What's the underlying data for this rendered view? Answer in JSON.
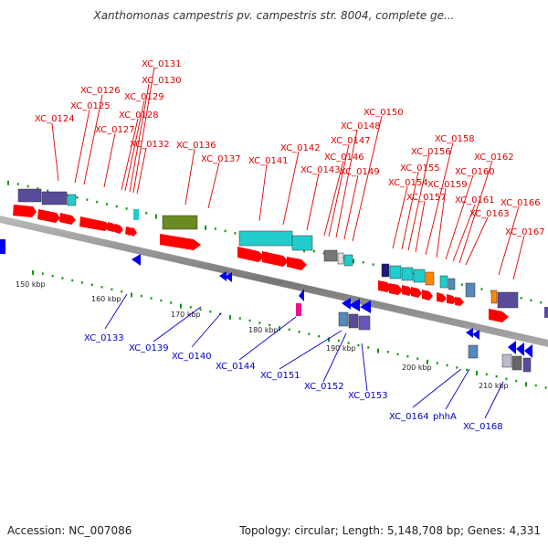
{
  "title": "Xanthomonas campestris pv. campestris str. 8004, complete ge...",
  "footer": {
    "accession": "Accession: NC_007086",
    "summary": "Topology: circular; Length: 5,148,708 bp; Genes: 4,331"
  },
  "axis": {
    "tick_labels": [
      "150 kbp",
      "160 kbp",
      "170 kbp",
      "180 kbp",
      "190 kbp",
      "200 kbp",
      "210 kbp"
    ]
  },
  "genes_forward": [
    "XC_0124",
    "XC_0125",
    "XC_0126",
    "XC_0127",
    "XC_0128",
    "XC_0129",
    "XC_0130",
    "XC_0131",
    "XC_0132",
    "XC_0136",
    "XC_0137",
    "XC_0141",
    "XC_0142",
    "XC_0143",
    "XC_0146",
    "XC_0147",
    "XC_0148",
    "XC_0149",
    "XC_0150",
    "XC_0154",
    "XC_0155",
    "XC_0156",
    "XC_0157",
    "XC_0158",
    "XC_0159",
    "XC_0160",
    "XC_0161",
    "XC_0162",
    "XC_0163",
    "XC_0166",
    "XC_0167"
  ],
  "genes_reverse": [
    "XC_0133",
    "XC_0139",
    "XC_0140",
    "XC_0144",
    "XC_0151",
    "XC_0152",
    "XC_0153",
    "XC_0164",
    "phhA",
    "XC_0168"
  ],
  "colors": {
    "forward_label": "#e00000",
    "reverse_label": "#0000cc",
    "backbone": "#888888",
    "tick": "#119911",
    "forward_cds": "#ff0000",
    "reverse_cds": "#0000ee",
    "cog_purple": "#5a4a9a",
    "cog_cyan": "#22cccc",
    "cog_olive": "#6a8a22",
    "cog_gray": "#777777",
    "cog_orange": "#ff8800",
    "cog_steel": "#5588bb",
    "cog_magenta": "#ee1188"
  }
}
